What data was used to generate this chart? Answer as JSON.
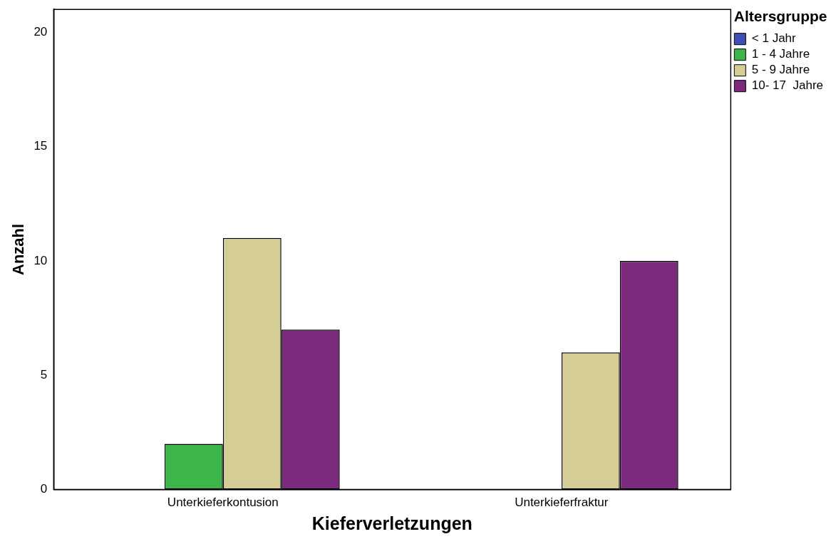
{
  "chart_data": {
    "type": "bar",
    "xlabel": "Kieferverletzungen",
    "ylabel": "Anzahl",
    "legend_title": "Altersgruppe",
    "categories": [
      "Unterkieferkontusion",
      "Unterkieferfraktur"
    ],
    "series": [
      {
        "name": "< 1 Jahr",
        "color": "#3f4fb3",
        "values": [
          0,
          0
        ]
      },
      {
        "name": "1 - 4 Jahre",
        "color": "#3cb54a",
        "values": [
          2,
          0
        ]
      },
      {
        "name": "5 - 9 Jahre",
        "color": "#d5cd96",
        "values": [
          11,
          6
        ]
      },
      {
        "name": "10- 17  Jahre",
        "color": "#7b2a7d",
        "values": [
          7,
          10
        ]
      }
    ],
    "ylim": [
      0,
      21
    ],
    "yticks": [
      0,
      5,
      10,
      15,
      20
    ],
    "grid": false,
    "legend": "top right"
  }
}
